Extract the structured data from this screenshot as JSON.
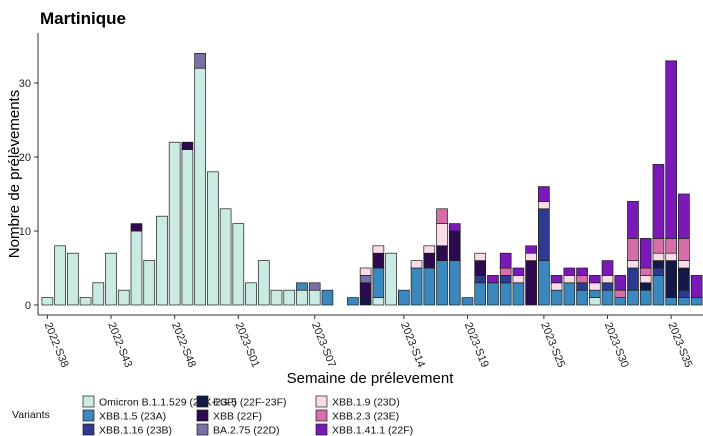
{
  "chart_data": {
    "type": "bar",
    "stacked": true,
    "title": "Martinique",
    "xlabel": "Semaine de prélevement",
    "ylabel": "Nombre de prélèvements",
    "ylim": [
      0,
      37
    ],
    "yticks": [
      0,
      10,
      20,
      30
    ],
    "grid": false,
    "legend_position": "bottom",
    "legend_title": "Variants",
    "x_tick_labels": [
      {
        "index": 0,
        "label": "2022-S38"
      },
      {
        "index": 5,
        "label": "2022-S43"
      },
      {
        "index": 10,
        "label": "2022-S48"
      },
      {
        "index": 15,
        "label": "2023-S01"
      },
      {
        "index": 21,
        "label": "2023-S07"
      },
      {
        "index": 28,
        "label": "2023-S14"
      },
      {
        "index": 33,
        "label": "2023-S19"
      },
      {
        "index": 39,
        "label": "2023-S25"
      },
      {
        "index": 44,
        "label": "2023-S30"
      },
      {
        "index": 49,
        "label": "2023-S35"
      }
    ],
    "series": [
      {
        "name": "Omicron B.1.1.529 (21K-23F)",
        "color": "#c9ebe3",
        "values": [
          1,
          8,
          7,
          1,
          3,
          7,
          2,
          10,
          6,
          12,
          22,
          21,
          32,
          18,
          13,
          11,
          3,
          6,
          2,
          2,
          2,
          2,
          0,
          0,
          0,
          0,
          1,
          7,
          0,
          0,
          0,
          0,
          0,
          0,
          0,
          0,
          0,
          0,
          0,
          0,
          0,
          0,
          0,
          1,
          0,
          0,
          0,
          0,
          0,
          0,
          0,
          0
        ]
      },
      {
        "name": "XBB.1.5 (23A)",
        "color": "#3a88bd",
        "values": [
          0,
          0,
          0,
          0,
          0,
          0,
          0,
          0,
          0,
          0,
          0,
          0,
          0,
          0,
          0,
          0,
          0,
          0,
          0,
          0,
          1,
          0,
          2,
          0,
          1,
          0,
          4,
          0,
          2,
          5,
          5,
          6,
          6,
          1,
          3,
          3,
          3,
          3,
          0,
          6,
          2,
          3,
          2,
          1,
          2,
          1,
          2,
          2,
          4,
          1,
          1,
          1
        ]
      },
      {
        "name": "XBB.1.16 (23B)",
        "color": "#2e3a8f",
        "values": [
          0,
          0,
          0,
          0,
          0,
          0,
          0,
          0,
          0,
          0,
          0,
          0,
          0,
          0,
          0,
          0,
          0,
          0,
          0,
          0,
          0,
          0,
          0,
          0,
          0,
          0,
          0,
          0,
          0,
          0,
          0,
          0,
          0,
          0,
          1,
          0,
          1,
          0,
          0,
          7,
          0,
          0,
          1,
          0,
          1,
          0,
          3,
          0,
          1,
          0,
          1,
          0
        ]
      },
      {
        "name": "EG.5 (22F-23F)",
        "color": "#141a48",
        "values": [
          0,
          0,
          0,
          0,
          0,
          0,
          0,
          0,
          0,
          0,
          0,
          0,
          0,
          0,
          0,
          0,
          0,
          0,
          0,
          0,
          0,
          0,
          0,
          0,
          0,
          1,
          0,
          0,
          0,
          0,
          0,
          0,
          0,
          0,
          0,
          0,
          0,
          0,
          0,
          0,
          0,
          0,
          0,
          0,
          0,
          0,
          0,
          1,
          1,
          5,
          3,
          0
        ]
      },
      {
        "name": "XBB (22F)",
        "color": "#2e0a4e",
        "values": [
          0,
          0,
          0,
          0,
          0,
          0,
          0,
          1,
          0,
          0,
          0,
          1,
          0,
          0,
          0,
          0,
          0,
          0,
          0,
          0,
          0,
          0,
          0,
          0,
          0,
          2,
          2,
          0,
          0,
          0,
          2,
          2,
          4,
          0,
          2,
          0,
          0,
          0,
          6,
          0,
          0,
          0,
          0,
          0,
          0,
          0,
          0,
          0,
          0,
          0,
          0,
          0
        ]
      },
      {
        "name": "BA.2.75 (22D)",
        "color": "#7b6fa8",
        "values": [
          0,
          0,
          0,
          0,
          0,
          0,
          0,
          0,
          0,
          0,
          0,
          0,
          2,
          0,
          0,
          0,
          0,
          0,
          0,
          0,
          0,
          1,
          0,
          0,
          0,
          1,
          0,
          0,
          0,
          0,
          0,
          0,
          0,
          0,
          0,
          0,
          0,
          0,
          0,
          0,
          0,
          0,
          0,
          0,
          0,
          0,
          0,
          0,
          0,
          0,
          0,
          0
        ]
      },
      {
        "name": "XBB.1.9 (23D)",
        "color": "#fadbe8",
        "values": [
          0,
          0,
          0,
          0,
          0,
          0,
          0,
          0,
          0,
          0,
          0,
          0,
          0,
          0,
          0,
          0,
          0,
          0,
          0,
          0,
          0,
          0,
          0,
          0,
          0,
          1,
          1,
          0,
          0,
          1,
          1,
          3,
          0,
          0,
          1,
          0,
          0,
          1,
          1,
          1,
          1,
          1,
          0,
          1,
          1,
          0,
          1,
          1,
          1,
          1,
          1,
          0
        ]
      },
      {
        "name": "XBB.2.3 (23E)",
        "color": "#d86ea9",
        "values": [
          0,
          0,
          0,
          0,
          0,
          0,
          0,
          0,
          0,
          0,
          0,
          0,
          0,
          0,
          0,
          0,
          0,
          0,
          0,
          0,
          0,
          0,
          0,
          0,
          0,
          0,
          0,
          0,
          0,
          0,
          0,
          2,
          0,
          0,
          0,
          0,
          1,
          0,
          0,
          0,
          0,
          0,
          1,
          0,
          0,
          1,
          3,
          1,
          2,
          2,
          3,
          0
        ]
      },
      {
        "name": "XBB.1.41.1 (22F)",
        "color": "#7b19b8",
        "values": [
          0,
          0,
          0,
          0,
          0,
          0,
          0,
          0,
          0,
          0,
          0,
          0,
          0,
          0,
          0,
          0,
          0,
          0,
          0,
          0,
          0,
          0,
          0,
          0,
          0,
          0,
          0,
          0,
          0,
          0,
          0,
          0,
          1,
          0,
          0,
          1,
          2,
          1,
          1,
          2,
          1,
          1,
          1,
          1,
          2,
          2,
          5,
          4,
          10,
          24,
          6,
          3
        ]
      }
    ]
  }
}
